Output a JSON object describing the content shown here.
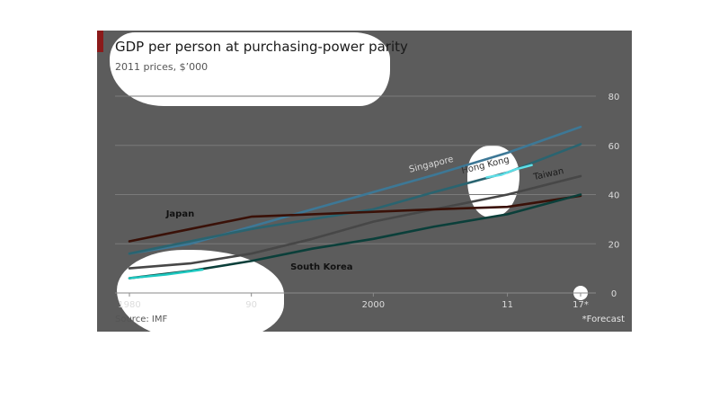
{
  "chart": {
    "title": "GDP per person at purchasing-power parity",
    "subtitle": "2011 prices, $’000",
    "source": "Source: IMF",
    "footnote": "*Forecast",
    "accent_color": "#8b1a1a"
  },
  "chart_data": {
    "type": "line",
    "title": "GDP per person at purchasing-power parity",
    "subtitle": "2011 prices, $’000",
    "xlabel": "",
    "ylabel": "",
    "xlim": [
      1980,
      2017
    ],
    "ylim": [
      0,
      80
    ],
    "x_ticks": [
      {
        "value": 1980,
        "label": "1980"
      },
      {
        "value": 1990,
        "label": "90"
      },
      {
        "value": 2000,
        "label": "2000"
      },
      {
        "value": 2011,
        "label": "11"
      },
      {
        "value": 2017,
        "label": "17*"
      }
    ],
    "y_ticks": [
      {
        "value": 0,
        "label": "0"
      },
      {
        "value": 20,
        "label": "20"
      },
      {
        "value": 40,
        "label": "40"
      },
      {
        "value": 60,
        "label": "60"
      },
      {
        "value": 80,
        "label": "80"
      }
    ],
    "grid": true,
    "y_axis_position": "right",
    "series": [
      {
        "name": "Singapore",
        "color": "#3d7896",
        "label_color": "#d8d8d8",
        "points": [
          [
            1980,
            16
          ],
          [
            1985,
            20
          ],
          [
            1990,
            27
          ],
          [
            1995,
            34
          ],
          [
            2000,
            41
          ],
          [
            2005,
            48
          ],
          [
            2011,
            57
          ],
          [
            2017,
            67.5
          ]
        ]
      },
      {
        "name": "Hong Kong",
        "color": "#2a6470",
        "label_color": "#333333",
        "points": [
          [
            1980,
            16
          ],
          [
            1985,
            21
          ],
          [
            1990,
            26
          ],
          [
            1995,
            30
          ],
          [
            2000,
            34
          ],
          [
            2005,
            41
          ],
          [
            2011,
            49
          ],
          [
            2017,
            60.5
          ]
        ]
      },
      {
        "name": "Taiwan",
        "color": "#474747",
        "label_color": "#1a1a1a",
        "points": [
          [
            1980,
            10
          ],
          [
            1985,
            12
          ],
          [
            1990,
            16
          ],
          [
            1995,
            22
          ],
          [
            2000,
            29
          ],
          [
            2005,
            34
          ],
          [
            2011,
            40
          ],
          [
            2017,
            47.5
          ]
        ]
      },
      {
        "name": "Japan",
        "color": "#3a1108",
        "label_color": "#111111",
        "points": [
          [
            1980,
            21
          ],
          [
            1985,
            26
          ],
          [
            1990,
            31
          ],
          [
            1995,
            32
          ],
          [
            2000,
            33
          ],
          [
            2005,
            34
          ],
          [
            2011,
            35
          ],
          [
            2017,
            39.5
          ]
        ]
      },
      {
        "name": "South Korea",
        "color": "#0b3f3a",
        "label_color": "#111111",
        "points": [
          [
            1980,
            6
          ],
          [
            1985,
            9
          ],
          [
            1990,
            13
          ],
          [
            1995,
            18
          ],
          [
            2000,
            22
          ],
          [
            2005,
            27
          ],
          [
            2011,
            32
          ],
          [
            2017,
            40
          ]
        ]
      }
    ],
    "highlight_segments": [
      {
        "series": "South Korea",
        "color": "#1ec8c0",
        "points": [
          [
            1980,
            6
          ],
          [
            1983,
            7.5
          ],
          [
            1986,
            9.5
          ]
        ]
      },
      {
        "series": "Hong Kong",
        "color": "#5ee0e8",
        "points": [
          [
            2009.3,
            47
          ],
          [
            2010.5,
            48
          ],
          [
            2011.5,
            50
          ],
          [
            2013,
            52
          ]
        ]
      }
    ],
    "labels": [
      {
        "series": "Singapore",
        "text": "Singapore",
        "x": 2003,
        "y": 49,
        "angle": -14
      },
      {
        "series": "Hong Kong",
        "text": "Hong Kong",
        "x": 2007.3,
        "y": 48.5,
        "angle": -14
      },
      {
        "series": "Taiwan",
        "text": "Taiwan",
        "x": 2013.2,
        "y": 46,
        "angle": -12
      },
      {
        "series": "Japan",
        "text": "Japan",
        "x": 1983,
        "y": 31,
        "angle": 0
      },
      {
        "series": "South Korea",
        "text": "South Korea",
        "x": 1993.2,
        "y": 9.5,
        "angle": 0
      }
    ]
  }
}
